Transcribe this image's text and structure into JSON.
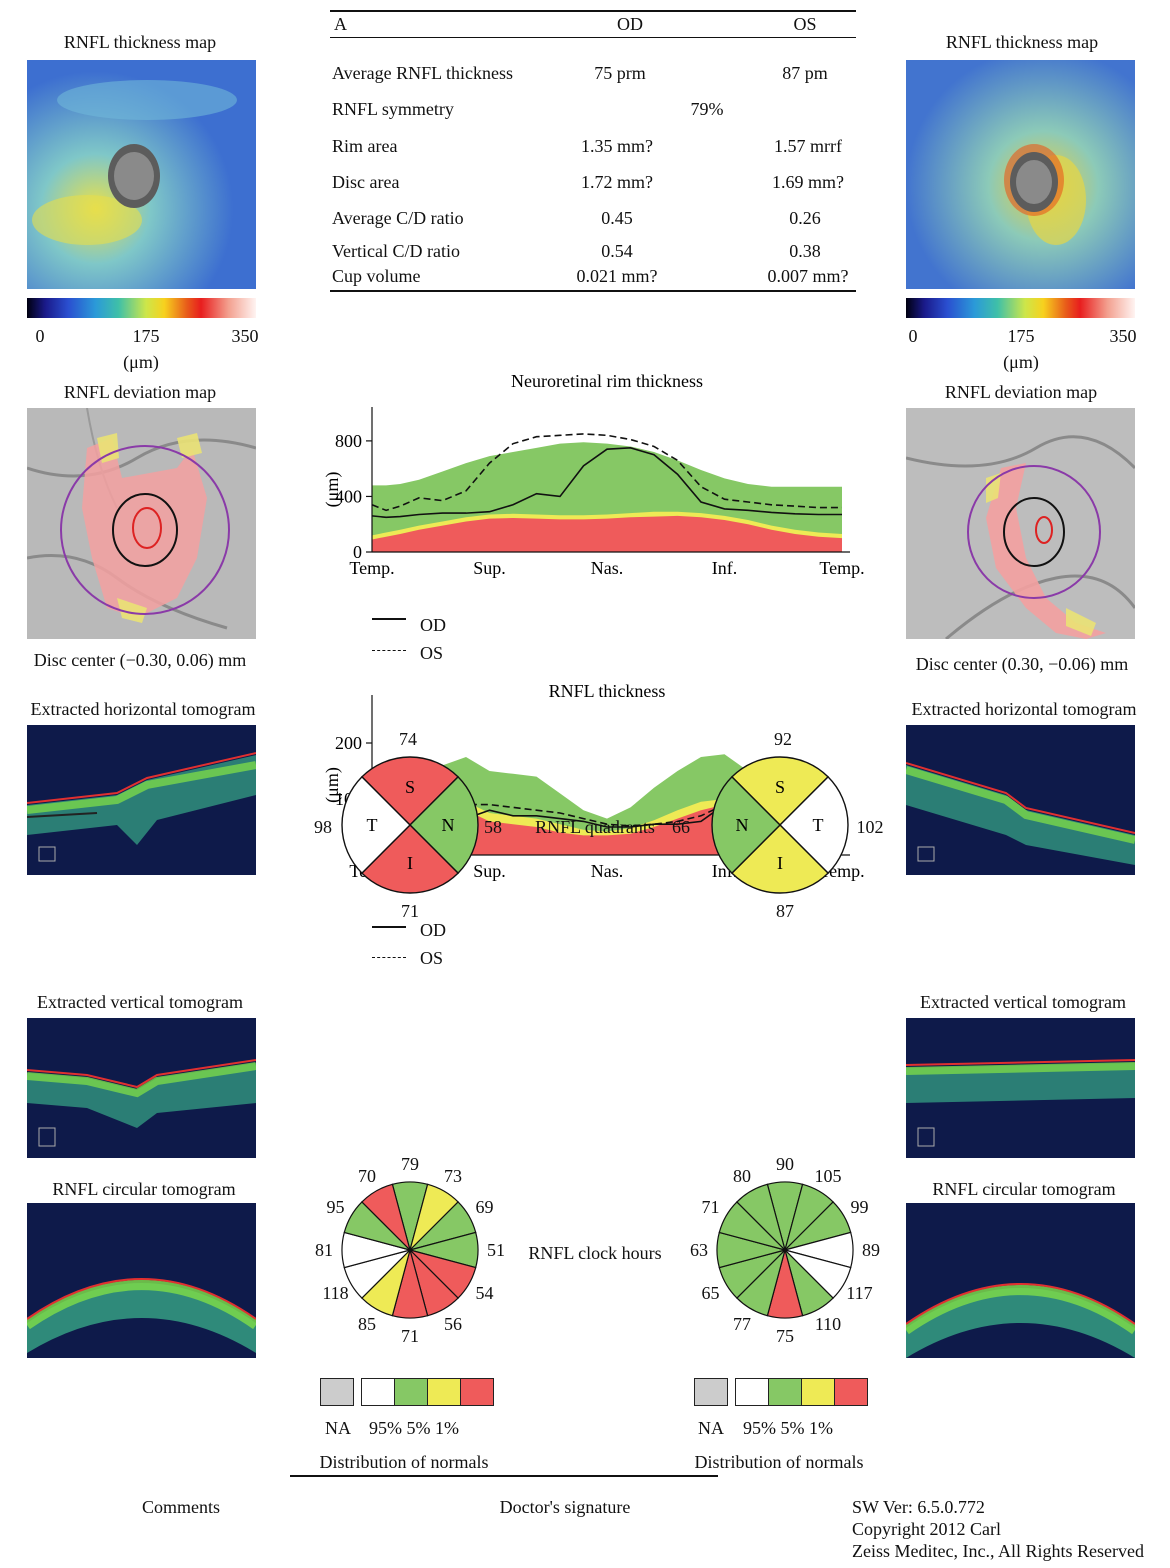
{
  "left_panel": {
    "thickness_map_title": "RNFL thickness map",
    "scale_ticks": [
      "0",
      "175",
      "350"
    ],
    "scale_unit": "(μm)",
    "deviation_map_title": "RNFL deviation map",
    "disc_center": "Disc center (−0.30, 0.06) mm",
    "horizontal_tomogram_title": "Extracted horizontal tomogram",
    "vertical_tomogram_title": "Extracted vertical tomogram",
    "circular_tomogram_title": "RNFL circular tomogram"
  },
  "right_panel": {
    "thickness_map_title": "RNFL thickness map",
    "scale_ticks": [
      "0",
      "175",
      "350"
    ],
    "scale_unit": "(μm)",
    "deviation_map_title": "RNFL deviation map",
    "disc_center": "Disc center (0.30, −0.06) mm",
    "horizontal_tomogram_title": "Extracted horizontal tomogram",
    "vertical_tomogram_title": "Extracted vertical tomogram",
    "circular_tomogram_title": "RNFL circular tomogram"
  },
  "summary_table": {
    "headers": [
      "A",
      "OD",
      "OS"
    ],
    "rows": [
      {
        "label": "Average RNFL thickness",
        "od": "75 prm",
        "os": "87 pm"
      },
      {
        "label": "RNFL symmetry",
        "both": "79%"
      },
      {
        "label": "Rim area",
        "od": "1.35 mm?",
        "os": "1.57 mrrf"
      },
      {
        "label": "Disc area",
        "od": "1.72 mm?",
        "os": "1.69 mm?"
      },
      {
        "label": "Average C/D ratio",
        "od": "0.45",
        "os": "0.26"
      },
      {
        "label": "Vertical C/D ratio",
        "od": "0.54",
        "os": "0.38"
      },
      {
        "label": "Cup volume",
        "od": "0.021 mm?",
        "os": "0.007 mm?"
      }
    ]
  },
  "chart_data": [
    {
      "type": "area",
      "title": "Neuroretinal rim thickness",
      "ylabel": "(μm)",
      "ylim": [
        0,
        900
      ],
      "yticks": [
        "0",
        "400",
        "800"
      ],
      "x_labels": [
        "Temp.",
        "Sup.",
        "Nas.",
        "Inf.",
        "Temp."
      ],
      "x": [
        0,
        0.03,
        0.06,
        0.1,
        0.15,
        0.2,
        0.25,
        0.3,
        0.35,
        0.4,
        0.45,
        0.5,
        0.55,
        0.6,
        0.65,
        0.7,
        0.75,
        0.8,
        0.85,
        0.9,
        0.95,
        1.0
      ],
      "bands": {
        "red_1pct": [
          90,
          110,
          130,
          160,
          190,
          220,
          240,
          245,
          240,
          235,
          235,
          240,
          250,
          255,
          260,
          250,
          230,
          200,
          160,
          130,
          110,
          100
        ],
        "yellow_5pct": [
          120,
          140,
          160,
          190,
          220,
          250,
          270,
          275,
          270,
          265,
          265,
          270,
          280,
          290,
          290,
          280,
          260,
          230,
          190,
          160,
          140,
          130
        ],
        "green_95pct": [
          480,
          480,
          490,
          520,
          580,
          640,
          690,
          720,
          750,
          780,
          790,
          780,
          760,
          720,
          660,
          590,
          530,
          490,
          470,
          470,
          470,
          470
        ]
      },
      "series": [
        {
          "name": "OD",
          "style": "solid",
          "values": [
            260,
            250,
            255,
            270,
            280,
            280,
            290,
            340,
            420,
            400,
            620,
            740,
            750,
            700,
            560,
            360,
            310,
            300,
            285,
            275,
            270,
            270
          ]
        },
        {
          "name": "OS",
          "style": "dashed",
          "values": [
            340,
            300,
            330,
            390,
            370,
            440,
            640,
            780,
            830,
            840,
            850,
            840,
            810,
            760,
            660,
            470,
            380,
            360,
            340,
            330,
            320,
            320
          ]
        }
      ],
      "legend": [
        "OD",
        "OS"
      ]
    },
    {
      "type": "area",
      "title": "RNFL thickness",
      "ylabel": "(μm)",
      "ylim": [
        0,
        250
      ],
      "yticks": [
        "0",
        "100",
        "200"
      ],
      "x_labels": [
        "Temp.",
        "Sup.",
        "Nas.",
        "Inf.",
        "Temp."
      ],
      "x": [
        0,
        0.05,
        0.1,
        0.15,
        0.2,
        0.25,
        0.3,
        0.35,
        0.4,
        0.45,
        0.5,
        0.55,
        0.6,
        0.65,
        0.7,
        0.75,
        0.8,
        0.85,
        0.9,
        0.95,
        1.0
      ],
      "bands": {
        "red_1pct": [
          30,
          40,
          55,
          70,
          80,
          60,
          55,
          50,
          40,
          35,
          35,
          38,
          50,
          65,
          80,
          90,
          70,
          45,
          35,
          30,
          30
        ],
        "yellow_5pct": [
          40,
          55,
          70,
          85,
          95,
          75,
          70,
          65,
          55,
          45,
          42,
          48,
          62,
          80,
          95,
          100,
          85,
          60,
          45,
          40,
          40
        ],
        "green_95pct": [
          70,
          95,
          120,
          160,
          175,
          150,
          145,
          140,
          110,
          80,
          65,
          85,
          120,
          150,
          175,
          180,
          150,
          110,
          80,
          65,
          65
        ]
      },
      "series": [
        {
          "name": "OD",
          "style": "solid",
          "values": [
            80,
            90,
            100,
            70,
            65,
            80,
            70,
            70,
            65,
            60,
            50,
            50,
            55,
            55,
            60,
            90,
            85,
            120,
            100,
            80,
            75
          ]
        },
        {
          "name": "OS",
          "style": "dashed",
          "values": [
            85,
            95,
            100,
            95,
            90,
            90,
            85,
            80,
            75,
            65,
            55,
            52,
            55,
            60,
            70,
            90,
            105,
            120,
            110,
            90,
            80
          ]
        }
      ],
      "legend": [
        "OD",
        "OS"
      ]
    }
  ],
  "quadrants": {
    "label": "RNFL quadrants",
    "od": {
      "S": "74",
      "N": "58",
      "I": "71",
      "T": "98"
    },
    "os": {
      "S": "92",
      "T": "102",
      "I": "87",
      "N": "66"
    }
  },
  "clock_hours": {
    "label": "RNFL clock hours",
    "od_values": [
      "79",
      "73",
      "69",
      "51",
      "54",
      "56",
      "71",
      "85",
      "118",
      "81",
      "95",
      "70"
    ],
    "os_values": [
      "90",
      "105",
      "99",
      "89",
      "117",
      "110",
      "75",
      "77",
      "65",
      "63",
      "71",
      "80"
    ]
  },
  "normals_legend": {
    "na": "NA",
    "percent_labels": "95% 5% 1%",
    "title": "Distribution of normals"
  },
  "footer": {
    "comments": "Comments",
    "signature": "Doctor's signature",
    "sw_ver": "SW Ver: 6.5.0.772",
    "copyright_1": "Copyright 2012 Carl",
    "copyright_2": "Zeiss Meditec, Inc., All Rights Reserved"
  },
  "colors": {
    "red": "#ef5b5b",
    "yellow": "#eeea55",
    "green": "#86c865",
    "white": "#ffffff",
    "na_gray": "#cccccc",
    "clock_od": [
      "green",
      "yellow",
      "green",
      "green",
      "red",
      "red",
      "red",
      "yellow",
      "white",
      "white",
      "green",
      "red"
    ],
    "clock_os": [
      "green",
      "green",
      "green",
      "white",
      "white",
      "green",
      "red",
      "green",
      "green",
      "green",
      "green",
      "green"
    ]
  }
}
